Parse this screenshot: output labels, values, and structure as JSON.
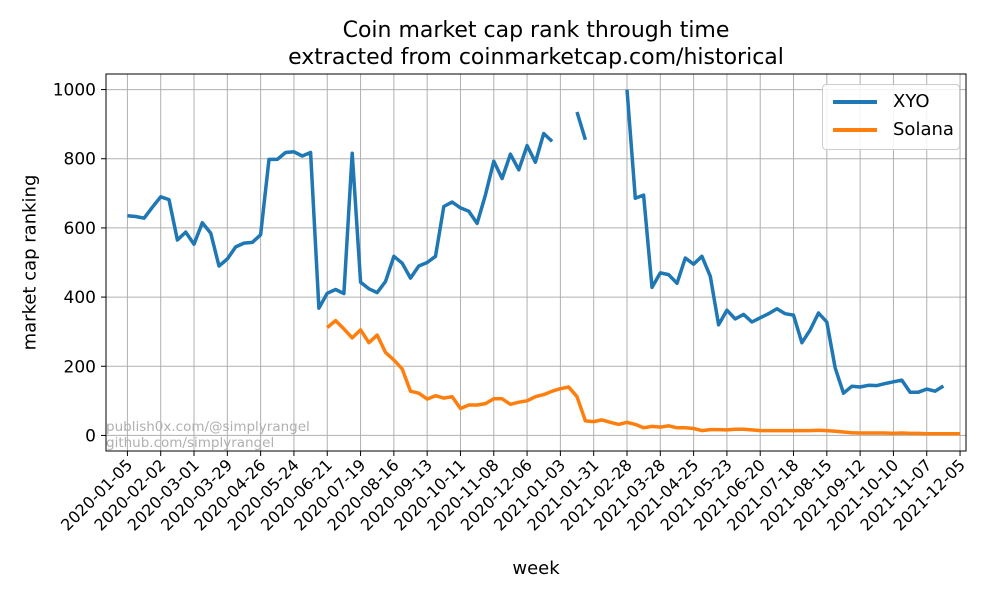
{
  "chart_data": {
    "type": "line",
    "title_line1": "Coin market cap rank through time",
    "title_line2": "extracted from coinmarketcap.com/historical",
    "xlabel": "week",
    "ylabel": "market cap ranking",
    "x_ticks": [
      "2020-01-05",
      "2020-02-02",
      "2020-03-01",
      "2020-03-29",
      "2020-04-26",
      "2020-05-24",
      "2020-06-21",
      "2020-07-19",
      "2020-08-16",
      "2020-09-13",
      "2020-10-11",
      "2020-11-08",
      "2020-12-06",
      "2021-01-03",
      "2021-01-31",
      "2021-02-28",
      "2021-03-28",
      "2021-04-25",
      "2021-05-23",
      "2021-06-20",
      "2021-07-18",
      "2021-08-15",
      "2021-09-12",
      "2021-10-10",
      "2021-11-07",
      "2021-12-05"
    ],
    "y_ticks": [
      0,
      200,
      400,
      600,
      800,
      1000
    ],
    "xlim": [
      "2019-12-18",
      "2021-12-10"
    ],
    "ylim": [
      -45,
      1045
    ],
    "grid": true,
    "legend_position": "top-right",
    "series": [
      {
        "name": "XYO",
        "color": "#1f77b4",
        "x": [
          "2020-01-05",
          "2020-01-12",
          "2020-01-19",
          "2020-01-26",
          "2020-02-02",
          "2020-02-09",
          "2020-02-16",
          "2020-02-23",
          "2020-03-01",
          "2020-03-08",
          "2020-03-15",
          "2020-03-22",
          "2020-03-29",
          "2020-04-05",
          "2020-04-12",
          "2020-04-19",
          "2020-04-26",
          "2020-05-03",
          "2020-05-10",
          "2020-05-17",
          "2020-05-24",
          "2020-05-31",
          "2020-06-07",
          "2020-06-14",
          "2020-06-21",
          "2020-06-28",
          "2020-07-05",
          "2020-07-12",
          "2020-07-19",
          "2020-07-26",
          "2020-08-02",
          "2020-08-09",
          "2020-08-16",
          "2020-08-23",
          "2020-08-30",
          "2020-09-06",
          "2020-09-13",
          "2020-09-20",
          "2020-09-27",
          "2020-10-04",
          "2020-10-11",
          "2020-10-18",
          "2020-10-25",
          "2020-11-01",
          "2020-11-08",
          "2020-11-15",
          "2020-11-22",
          "2020-11-29",
          "2020-12-06",
          "2020-12-13",
          "2020-12-20",
          "2020-12-27",
          null,
          "2021-01-17",
          "2021-01-24",
          null,
          "2021-02-28",
          "2021-03-07",
          "2021-03-14",
          "2021-03-21",
          "2021-03-28",
          "2021-04-04",
          "2021-04-11",
          "2021-04-18",
          "2021-04-25",
          "2021-05-02",
          "2021-05-09",
          "2021-05-16",
          "2021-05-23",
          "2021-05-30",
          "2021-06-06",
          "2021-06-13",
          "2021-06-20",
          "2021-06-27",
          "2021-07-04",
          "2021-07-11",
          "2021-07-18",
          "2021-07-25",
          "2021-08-01",
          "2021-08-08",
          "2021-08-15",
          "2021-08-22",
          "2021-08-29",
          "2021-09-05",
          "2021-09-12",
          "2021-09-19",
          "2021-09-26",
          "2021-10-03",
          "2021-10-10",
          "2021-10-17",
          "2021-10-24",
          "2021-10-31",
          "2021-11-07",
          "2021-11-14",
          "2021-11-21",
          "2021-11-28",
          "2021-12-05"
        ],
        "values": [
          635,
          633,
          628,
          660,
          690,
          682,
          565,
          588,
          553,
          615,
          585,
          490,
          510,
          545,
          556,
          558,
          580,
          798,
          798,
          818,
          820,
          808,
          818,
          368,
          411,
          422,
          410,
          816,
          443,
          424,
          413,
          445,
          518,
          498,
          455,
          490,
          500,
          518,
          662,
          675,
          658,
          648,
          613,
          695,
          793,
          743,
          813,
          768,
          838,
          790,
          873,
          850,
          null,
          935,
          855,
          null,
          1000,
          686,
          695,
          428,
          470,
          465,
          440,
          513,
          495,
          518,
          460,
          320,
          362,
          337,
          350,
          328,
          340,
          352,
          366,
          352,
          348,
          268,
          305,
          354,
          328,
          195,
          122,
          142,
          140,
          145,
          144,
          150,
          155,
          160,
          125,
          125,
          134,
          128,
          143,
          null,
          null
        ],
        "note": "gaps shown as null"
      },
      {
        "name": "Solana",
        "color": "#ff7f0e",
        "x": [
          "2020-06-21",
          "2020-06-28",
          "2020-07-05",
          "2020-07-12",
          "2020-07-19",
          "2020-07-26",
          "2020-08-02",
          "2020-08-09",
          "2020-08-16",
          "2020-08-23",
          "2020-08-30",
          "2020-09-06",
          "2020-09-13",
          "2020-09-20",
          "2020-09-27",
          "2020-10-04",
          "2020-10-11",
          "2020-10-18",
          "2020-10-25",
          "2020-11-01",
          "2020-11-08",
          "2020-11-15",
          "2020-11-22",
          "2020-11-29",
          "2020-12-06",
          "2020-12-13",
          "2020-12-20",
          "2020-12-27",
          "2021-01-03",
          "2021-01-10",
          "2021-01-17",
          "2021-01-24",
          "2021-01-31",
          "2021-02-07",
          "2021-02-14",
          "2021-02-21",
          "2021-02-28",
          "2021-03-07",
          "2021-03-14",
          "2021-03-21",
          "2021-03-28",
          "2021-04-04",
          "2021-04-11",
          "2021-04-18",
          "2021-04-25",
          "2021-05-02",
          "2021-05-09",
          "2021-05-16",
          "2021-05-23",
          "2021-05-30",
          "2021-06-06",
          "2021-06-13",
          "2021-06-20",
          "2021-06-27",
          "2021-07-04",
          "2021-07-11",
          "2021-07-18",
          "2021-07-25",
          "2021-08-01",
          "2021-08-08",
          "2021-08-15",
          "2021-08-22",
          "2021-08-29",
          "2021-09-05",
          "2021-09-12",
          "2021-09-19",
          "2021-09-26",
          "2021-10-03",
          "2021-10-10",
          "2021-10-17",
          "2021-10-24",
          "2021-10-31",
          "2021-11-07",
          "2021-11-14",
          "2021-11-21",
          "2021-11-28",
          "2021-12-05"
        ],
        "values": [
          312,
          332,
          308,
          282,
          305,
          268,
          290,
          240,
          218,
          192,
          128,
          122,
          105,
          115,
          108,
          112,
          78,
          88,
          88,
          92,
          106,
          106,
          90,
          96,
          100,
          112,
          118,
          128,
          135,
          140,
          112,
          42,
          40,
          45,
          38,
          32,
          38,
          32,
          22,
          26,
          24,
          28,
          22,
          22,
          20,
          14,
          17,
          17,
          16,
          18,
          18,
          16,
          14,
          14,
          14,
          14,
          14,
          14,
          14,
          15,
          14,
          12,
          10,
          8,
          7,
          7,
          7,
          7,
          6,
          7,
          6,
          6,
          5,
          5,
          5,
          5,
          5
        ]
      }
    ]
  },
  "watermark": {
    "line1": "publish0x.com/@simplyrangel",
    "line2": "github.com/simplyrangel"
  }
}
